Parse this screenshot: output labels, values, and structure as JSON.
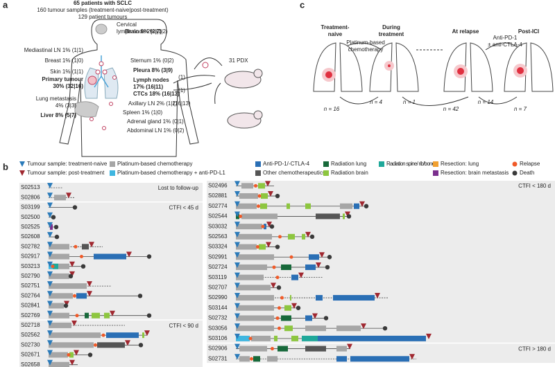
{
  "panels": {
    "a": {
      "label": "a",
      "title": "65 patients with SCLC",
      "subtitle": "160 tumour samples (treatment-naive|post-treatment)",
      "note": "129 patient tumours",
      "sites": [
        {
          "lines": [
            "Brain 6% (2|7)"
          ],
          "bold": true
        },
        {
          "lines": [
            "Cervical",
            "lymph node 2% (1|2)"
          ],
          "bold": false
        },
        {
          "lines": [
            "Mediastinal LN 1% (1|1)"
          ],
          "bold": false
        },
        {
          "lines": [
            "Breast 1% (1|0)"
          ],
          "bold": false
        },
        {
          "lines": [
            "Sternum 1% (0|2)"
          ],
          "bold": false
        },
        {
          "lines": [
            "Skin 1% (1|1)"
          ],
          "bold": false
        },
        {
          "lines": [
            "Primary tumour",
            "30% (32|16)"
          ],
          "bold": true
        },
        {
          "lines": [
            "Pleura 8% (3|9)"
          ],
          "bold": true
        },
        {
          "lines": [
            "Lymph nodes",
            "17% (16|11)"
          ],
          "bold": true
        },
        {
          "lines": [
            "CTCs 18% (16|13)"
          ],
          "bold": true
        },
        {
          "lines": [
            "Lung metastasis",
            "4% (3|3)"
          ],
          "bold": false
        },
        {
          "lines": [
            "Axillary LN 2% (1|2)"
          ],
          "bold": false
        },
        {
          "lines": [
            "Spleen 1% (1|0)"
          ],
          "bold": false
        },
        {
          "lines": [
            "Liver 8% (5|7)"
          ],
          "bold": true
        },
        {
          "lines": [
            "Adrenal gland 1% (0|1)"
          ],
          "bold": false
        },
        {
          "lines": [
            "Abdominal LN 1% (0|2)"
          ],
          "bold": false
        }
      ],
      "pdx": "31 PDX",
      "flows": [
        "(1)",
        "(1)",
        "(16|13)"
      ]
    },
    "c": {
      "label": "c",
      "stages": [
        [
          "Treatment-",
          "naive"
        ],
        [
          "During",
          "treatment"
        ],
        [
          "At relapse"
        ],
        [
          "Post-ICI"
        ]
      ],
      "treatments": [
        [
          "Platinum-based",
          "chemotherapy"
        ],
        [
          "Anti-PD-1",
          "± anti-CTLA-4"
        ]
      ],
      "counts": [
        "n = 16",
        "n = 4",
        "n = 1",
        "n = 42",
        "n = 14",
        "n = 7"
      ]
    },
    "b": {
      "label": "b",
      "legend": [
        {
          "text": "Tumour sample: treatment-naive",
          "color": "#2b7bba",
          "shape": "triangle"
        },
        {
          "text": "Tumour sample: post-treatment",
          "color": "#a02830",
          "shape": "triangle"
        },
        {
          "text": "Platinum-based chemotherapy",
          "color": "#a6a6a6",
          "shape": "square"
        },
        {
          "text": "Platinum-based chemotherapy + anti-PD-L1",
          "color": "#3fb6e0",
          "shape": "square"
        },
        {
          "text": "Anti-PD-1/-CTLA-4",
          "color": "#2a6fb5",
          "shape": "square"
        },
        {
          "text": "Other chemotherapeutics",
          "color": "#555555",
          "shape": "square"
        },
        {
          "text": "Radiation lung",
          "color": "#17693a",
          "shape": "square"
        },
        {
          "text": "Radiation brain",
          "color": "#8dc63f",
          "shape": "square"
        },
        {
          "text": "Radiation spine/ rib/bone",
          "color": "#1fa89a",
          "shape": "square"
        },
        {
          "text": "Resection: lung",
          "color": "#f0a030",
          "shape": "square"
        },
        {
          "text": "Resection: brain metastasis",
          "color": "#7b2f8e",
          "shape": "square"
        },
        {
          "text": "Relapse",
          "color": "#f05a28",
          "shape": "circle"
        },
        {
          "text": "Death",
          "color": "#3a3a3a",
          "shape": "circle"
        }
      ],
      "groups": [
        {
          "side": "left",
          "label": "Lost to follow-up",
          "samples": [
            "S02513",
            "S02806"
          ]
        },
        {
          "side": "left",
          "label": "CTFI < 45 d",
          "samples": [
            "S03199",
            "S02500",
            "S02525",
            "S02608",
            "S02782",
            "S02917",
            "S03213",
            "S02790",
            "S02751",
            "S02764",
            "S02841",
            "S02769"
          ]
        },
        {
          "side": "left",
          "label": "CTFI < 90 d",
          "samples": [
            "S02718",
            "S02562",
            "S02730",
            "S02671",
            "S02658"
          ]
        },
        {
          "side": "right",
          "label": "CTFI < 180 d",
          "samples": [
            "S02496",
            "S02881",
            "S02774",
            "S02544",
            "S03032",
            "S02563",
            "S03324",
            "S02991",
            "S02724",
            "S03119",
            "S02707",
            "S02990",
            "S03144",
            "S02732",
            "S03056",
            "S03106"
          ]
        },
        {
          "side": "right",
          "label": "CTFI > 180 d",
          "samples": [
            "S02906",
            "S02731"
          ]
        }
      ]
    }
  }
}
